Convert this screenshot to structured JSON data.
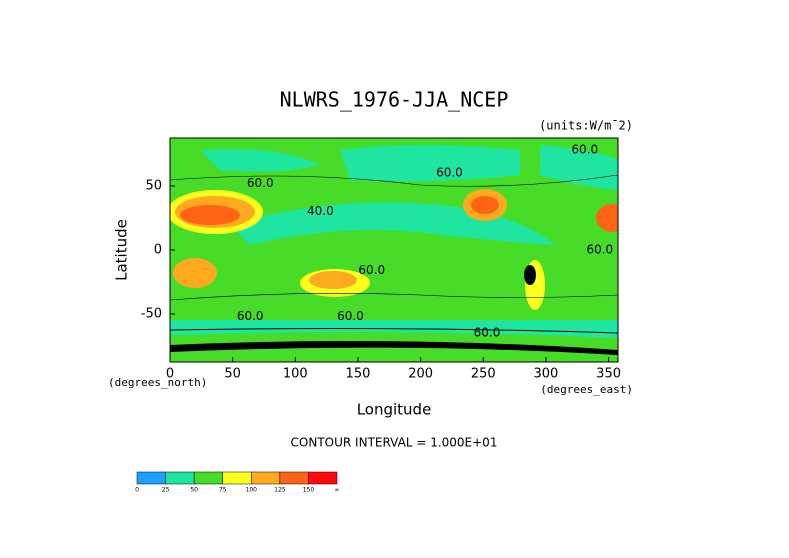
{
  "chart_data": {
    "type": "contour",
    "title": "NLWRS_1976-JJA_NCEP",
    "units": "(units:W/m¯2)",
    "y_label": "Latitude",
    "x_label": "Longitude",
    "y_unit": "(degrees_north)",
    "x_unit": "(degrees_east)",
    "xlim": [
      0,
      357.5
    ],
    "ylim": [
      -87.5,
      87.5
    ],
    "xticks": [
      0,
      50,
      100,
      150,
      200,
      250,
      300,
      350
    ],
    "yticks": [
      -50,
      0,
      50
    ],
    "contour_interval": "CONTOUR INTERVAL = 1.000E+01",
    "contour_labels": [
      {
        "text": "60.0",
        "lon": 331,
        "lat": 78
      },
      {
        "text": "60.0",
        "lon": 223,
        "lat": 60
      },
      {
        "text": "40.0",
        "lon": 120,
        "lat": 30
      },
      {
        "text": "60.0",
        "lon": 72,
        "lat": 52
      },
      {
        "text": "60.0",
        "lon": 161,
        "lat": -16
      },
      {
        "text": "60.0",
        "lon": 343,
        "lat": 0
      },
      {
        "text": "60.0",
        "lon": 64,
        "lat": -52
      },
      {
        "text": "60.0",
        "lon": 144,
        "lat": -52
      },
      {
        "text": "60.0",
        "lon": 253,
        "lat": -65
      }
    ],
    "colorbar": {
      "levels": [
        0,
        25,
        50,
        75,
        100,
        125,
        150
      ],
      "top_label": "∞",
      "colors": [
        "#1ea0ff",
        "#1ee6a0",
        "#46dc28",
        "#ffff1e",
        "#ffaa1e",
        "#ff6414",
        "#ff0a0a"
      ]
    }
  }
}
